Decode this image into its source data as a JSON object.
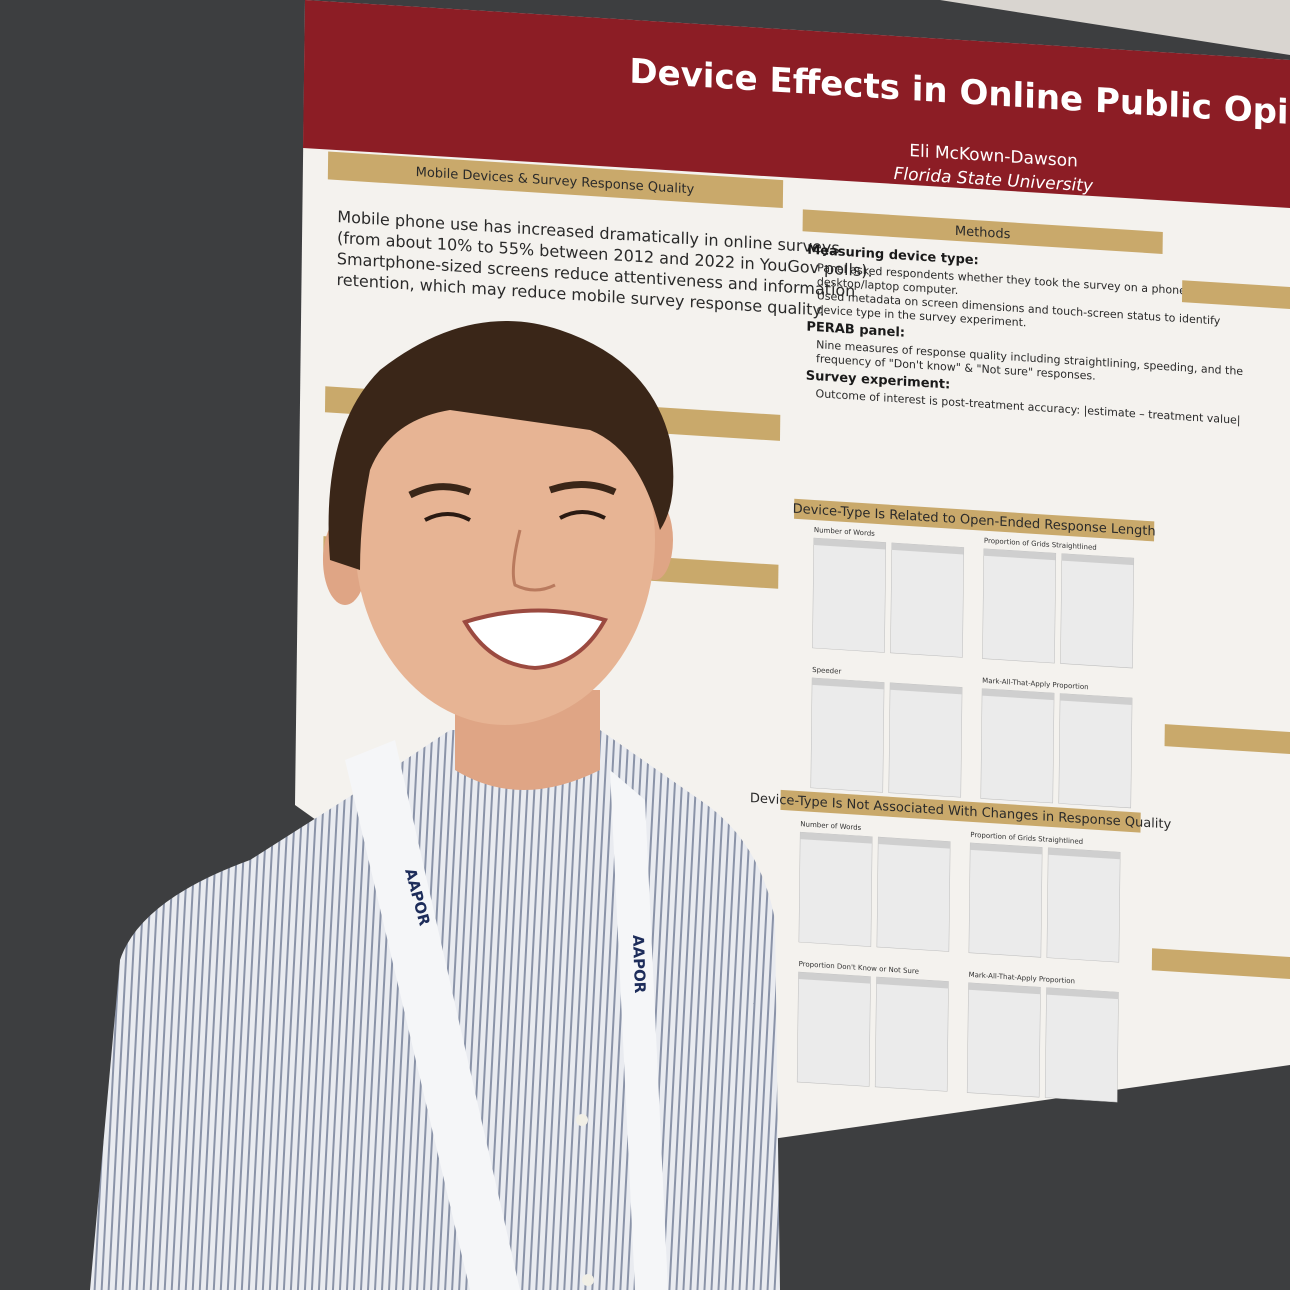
{
  "poster": {
    "title": "Device Effects in Online Public Opinion Surveys",
    "author": "Eli McKown-Dawson",
    "affiliation": "Florida State University",
    "section1": {
      "heading": "Mobile Devices & Survey Response Quality",
      "bullets": [
        "Mobile phone use has increased dramatically in online surveys",
        "(from about 10% to 55% between 2012 and 2022 in YouGov polls).",
        "Smartphone-sized screens reduce attentiveness and information",
        "retention, which may reduce mobile survey response quality."
      ]
    },
    "methods": {
      "heading": "Methods",
      "items": [
        "Measuring device type:",
        "Panel asked respondents whether they took the survey on a phone, tablet, or",
        "desktop/laptop computer.",
        "Used metadata on screen dimensions and touch-screen status to identify",
        "device type in the survey experiment.",
        "PERAB panel:",
        "Nine measures of response quality including straightlining, speeding, and the",
        "frequency of \"Don't know\" & \"Not sure\" responses.",
        "Survey experiment:",
        "Outcome of interest is post-treatment accuracy: |estimate – treatment value|"
      ]
    },
    "results1": {
      "heading": "Device-Type Is Related to Open-Ended Response Length",
      "panels": [
        "Number of Words",
        "Proportion of Grids Straightlined",
        "Speeder",
        "Mark-All-That-Apply Proportion"
      ]
    },
    "results2": {
      "heading": "Device-Type Is Not Associated With Changes in Response Quality",
      "panels": [
        "Number of Words",
        "Proportion of Grids Straightlined",
        "Proportion Don't Know or Not Sure",
        "Mark-All-That-Apply Proportion"
      ]
    },
    "lanyard": "AAPOR"
  }
}
